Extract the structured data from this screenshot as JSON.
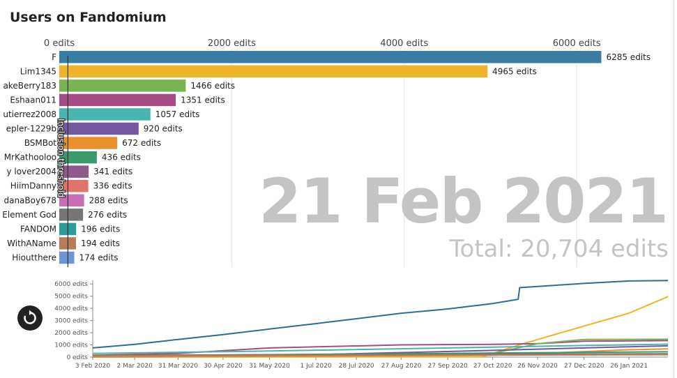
{
  "page": {
    "title": "Users on Fandomium",
    "date_label": "21 Feb 2021",
    "total_label": "Total: 20,704 edits",
    "threshold_label": "Inclusion threshold",
    "replay_icon": "replay-icon"
  },
  "chart_data": [
    {
      "type": "bar",
      "orientation": "horizontal",
      "title": "Users on Fandomium",
      "xlim": [
        0,
        6300
      ],
      "x_ticks": [
        "0 edits",
        "2000 edits",
        "4000 edits",
        "6000 edits"
      ],
      "categories": [
        "F",
        "Lim1345",
        "akeBerry183",
        "Eshaan011",
        "utierrez2008",
        "epler-1229b",
        "BSMBot",
        "MrKathooloo",
        "y lover2004",
        "HiimDanny",
        "danaBoy678",
        "Element God",
        "FANDOM",
        "WithAName",
        "Hioutthere"
      ],
      "values": [
        6285,
        4965,
        1466,
        1351,
        1057,
        920,
        672,
        436,
        341,
        336,
        288,
        276,
        196,
        194,
        174
      ],
      "value_labels": [
        "6285 edits",
        "4965 edits",
        "1466 edits",
        "1351 edits",
        "1057 edits",
        "920 edits",
        "672 edits",
        "436 edits",
        "341 edits",
        "336 edits",
        "288 edits",
        "276 edits",
        "196 edits",
        "194 edits",
        "174 edits"
      ],
      "colors": [
        "#3a7da2",
        "#f0b429",
        "#78b454",
        "#a54c85",
        "#4ab5ae",
        "#7358a0",
        "#e8902f",
        "#3a9a6e",
        "#8c5a8c",
        "#e0746a",
        "#c86fb4",
        "#767676",
        "#2d9b9b",
        "#b87c5a",
        "#6f95d2"
      ],
      "threshold": 100,
      "threshold_label": "Inclusion threshold",
      "grid": true
    },
    {
      "type": "line",
      "ylim": [
        0,
        6300
      ],
      "y_ticks": [
        "0 edits",
        "1000 edits",
        "2000 edits",
        "3000 edits",
        "4000 edits",
        "5000 edits",
        "6000 edits"
      ],
      "x_ticks": [
        "3 Feb 2020",
        "2 Mar 2020",
        "31 Mar 2020",
        "30 Apr 2020",
        "31 May 2020",
        "1 Jul 2020",
        "28 Jul 2020",
        "27 Aug 2020",
        "27 Sep 2020",
        "27 Oct 2020",
        "26 Nov 2020",
        "27 Dec 2020",
        "26 Jan 2021"
      ],
      "series": [
        {
          "color": "#2a6f97",
          "points": [
            [
              "3 Feb 2020",
              750
            ],
            [
              "2 Mar 2020",
              1050
            ],
            [
              "31 Mar 2020",
              1450
            ],
            [
              "30 Apr 2020",
              1850
            ],
            [
              "31 May 2020",
              2300
            ],
            [
              "1 Jul 2020",
              2750
            ],
            [
              "28 Jul 2020",
              3150
            ],
            [
              "27 Aug 2020",
              3600
            ],
            [
              "27 Sep 2020",
              3950
            ],
            [
              "27 Oct 2020",
              4400
            ],
            [
              "13 Nov 2020",
              4750
            ],
            [
              "14 Nov 2020",
              5700
            ],
            [
              "26 Nov 2020",
              5800
            ],
            [
              "27 Dec 2020",
              6050
            ],
            [
              "26 Jan 2021",
              6250
            ],
            [
              "21 Feb 2021",
              6285
            ]
          ]
        },
        {
          "color": "#f0b429",
          "points": [
            [
              "3 Feb 2020",
              0
            ],
            [
              "20 Oct 2020",
              20
            ],
            [
              "15 Nov 2020",
              1050
            ],
            [
              "27 Dec 2020",
              2550
            ],
            [
              "26 Jan 2021",
              3600
            ],
            [
              "21 Feb 2021",
              4965
            ]
          ]
        },
        {
          "color": "#a54c85",
          "points": [
            [
              "3 Feb 2020",
              150
            ],
            [
              "31 Mar 2020",
              300
            ],
            [
              "31 May 2020",
              750
            ],
            [
              "27 Aug 2020",
              1000
            ],
            [
              "27 Oct 2020",
              1050
            ],
            [
              "26 Nov 2020",
              1100
            ],
            [
              "27 Dec 2020",
              1300
            ],
            [
              "21 Feb 2021",
              1351
            ]
          ]
        },
        {
          "color": "#78b454",
          "points": [
            [
              "3 Feb 2020",
              0
            ],
            [
              "27 Oct 2020",
              300
            ],
            [
              "26 Nov 2020",
              1100
            ],
            [
              "27 Dec 2020",
              1450
            ],
            [
              "21 Feb 2021",
              1466
            ]
          ]
        },
        {
          "color": "#4ab5ae",
          "points": [
            [
              "3 Feb 2020",
              300
            ],
            [
              "31 May 2020",
              500
            ],
            [
              "27 Sep 2020",
              750
            ],
            [
              "27 Dec 2020",
              950
            ],
            [
              "21 Feb 2021",
              1057
            ]
          ]
        },
        {
          "color": "#7358a0",
          "points": [
            [
              "3 Feb 2020",
              0
            ],
            [
              "1 Jul 2020",
              200
            ],
            [
              "27 Oct 2020",
              550
            ],
            [
              "26 Jan 2021",
              850
            ],
            [
              "21 Feb 2021",
              920
            ]
          ]
        },
        {
          "color": "#e8902f",
          "points": [
            [
              "3 Feb 2020",
              0
            ],
            [
              "27 Oct 2020",
              150
            ],
            [
              "26 Jan 2021",
              600
            ],
            [
              "21 Feb 2021",
              672
            ]
          ]
        },
        {
          "color": "#3a9a6e",
          "points": [
            [
              "3 Feb 2020",
              100
            ],
            [
              "21 Feb 2021",
              436
            ]
          ]
        },
        {
          "color": "#767676",
          "points": [
            [
              "3 Feb 2020",
              150
            ],
            [
              "21 Feb 2021",
              276
            ]
          ]
        },
        {
          "color": "#b87c5a",
          "points": [
            [
              "3 Feb 2020",
              100
            ],
            [
              "21 Feb 2021",
              194
            ]
          ]
        }
      ]
    }
  ]
}
